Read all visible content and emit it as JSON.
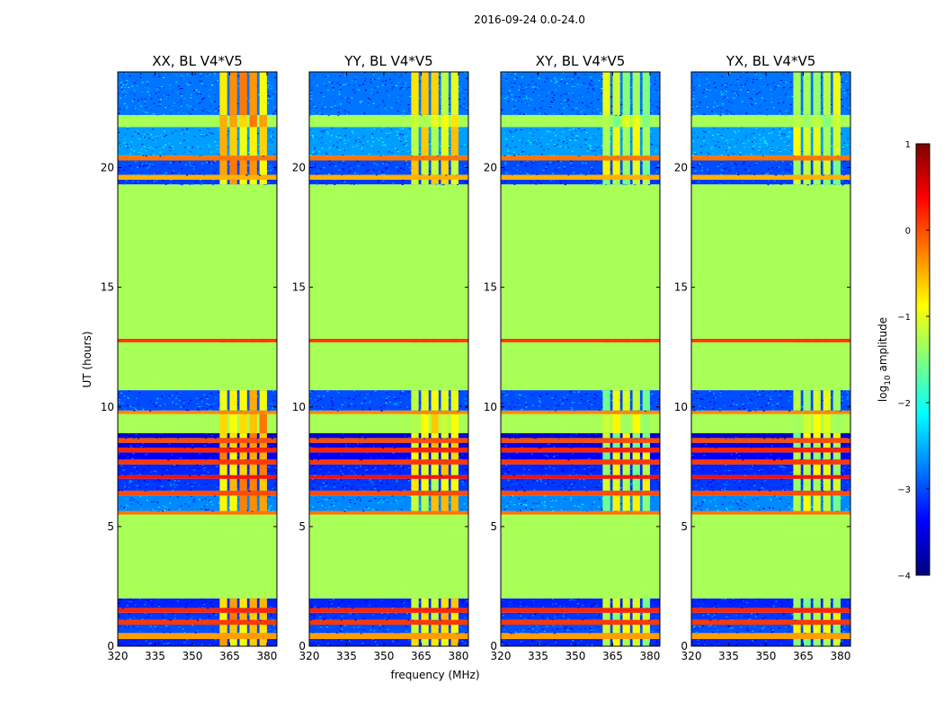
{
  "figure": {
    "suptitle": "2016-09-24 0.0-24.0"
  },
  "chart_data": {
    "type": "heatmap",
    "panels": [
      {
        "title": "XX, BL V4*V5",
        "pol": "XX"
      },
      {
        "title": "YY, BL V4*V5",
        "pol": "YY"
      },
      {
        "title": "XY, BL V4*V5",
        "pol": "XY"
      },
      {
        "title": "YX, BL V4*V5",
        "pol": "YX"
      }
    ],
    "xlabel": "frequency (MHz)",
    "ylabel": "UT (hours)",
    "xlim": [
      320,
      384
    ],
    "ylim": [
      0,
      24
    ],
    "xticks": [
      {
        "value": 320,
        "label": "320"
      },
      {
        "value": 335,
        "label": "335"
      },
      {
        "value": 350,
        "label": "350"
      },
      {
        "value": 365,
        "label": "365"
      },
      {
        "value": 380,
        "label": "380"
      }
    ],
    "yticks": [
      {
        "value": 0,
        "label": "0"
      },
      {
        "value": 5,
        "label": "5"
      },
      {
        "value": 10,
        "label": "10"
      },
      {
        "value": 15,
        "label": "15"
      },
      {
        "value": 20,
        "label": "20"
      }
    ],
    "colorbar": {
      "label_prefix": "log",
      "label_sub": "10",
      "label_suffix": " amplitude",
      "range": [
        -4,
        1
      ],
      "ticks": [
        {
          "value": 1,
          "label": "1"
        },
        {
          "value": 0,
          "label": "0"
        },
        {
          "value": -1,
          "label": "−1"
        },
        {
          "value": -2,
          "label": "−2"
        },
        {
          "value": -3,
          "label": "−3"
        },
        {
          "value": -4,
          "label": "−4"
        }
      ],
      "colormap": [
        "#00007f",
        "#0000ff",
        "#007fff",
        "#00ffff",
        "#7fff7f",
        "#ffff00",
        "#ff7f00",
        "#ff0000",
        "#7f0000"
      ]
    },
    "flagged_value": -1.3,
    "flagged_color": "#99ff55",
    "signal_channels_mhz": [
      [
        361,
        364
      ],
      [
        365,
        368
      ],
      [
        369,
        372
      ],
      [
        373,
        376
      ],
      [
        377,
        380
      ]
    ],
    "time_blocks_hours": [
      {
        "t0": 0.0,
        "t1": 0.3,
        "kind": "noise",
        "value": -3.2
      },
      {
        "t0": 0.3,
        "t1": 0.55,
        "kind": "rfi",
        "value": -0.4
      },
      {
        "t0": 0.55,
        "t1": 0.9,
        "kind": "noise",
        "value": -3.0
      },
      {
        "t0": 0.9,
        "t1": 1.1,
        "kind": "rfi",
        "value": 0.1
      },
      {
        "t0": 1.1,
        "t1": 1.4,
        "kind": "noise",
        "value": -3.1
      },
      {
        "t0": 1.4,
        "t1": 1.6,
        "kind": "rfi",
        "value": 0.2
      },
      {
        "t0": 1.6,
        "t1": 2.0,
        "kind": "noise",
        "value": -3.2
      },
      {
        "t0": 2.0,
        "t1": 5.5,
        "kind": "flagged",
        "value": -1.3
      },
      {
        "t0": 5.5,
        "t1": 5.65,
        "kind": "rfi",
        "value": -0.2
      },
      {
        "t0": 5.65,
        "t1": 6.3,
        "kind": "noise",
        "value": -2.7
      },
      {
        "t0": 6.3,
        "t1": 6.5,
        "kind": "rfi",
        "value": 0.0
      },
      {
        "t0": 6.5,
        "t1": 7.0,
        "kind": "noise",
        "value": -3.1
      },
      {
        "t0": 7.0,
        "t1": 7.15,
        "kind": "rfi",
        "value": 0.3
      },
      {
        "t0": 7.15,
        "t1": 7.6,
        "kind": "noise",
        "value": -3.2
      },
      {
        "t0": 7.6,
        "t1": 7.8,
        "kind": "rfi",
        "value": 0.1
      },
      {
        "t0": 7.8,
        "t1": 8.1,
        "kind": "noise",
        "value": -3.4
      },
      {
        "t0": 8.1,
        "t1": 8.3,
        "kind": "rfi",
        "value": 0.2
      },
      {
        "t0": 8.3,
        "t1": 8.5,
        "kind": "noise",
        "value": -3.5
      },
      {
        "t0": 8.5,
        "t1": 8.7,
        "kind": "rfi",
        "value": 0.0
      },
      {
        "t0": 8.7,
        "t1": 8.9,
        "kind": "noise",
        "value": -3.6
      },
      {
        "t0": 8.9,
        "t1": 9.7,
        "kind": "flagged",
        "value": -1.3
      },
      {
        "t0": 9.7,
        "t1": 9.85,
        "kind": "rfi",
        "value": -0.3
      },
      {
        "t0": 9.85,
        "t1": 10.7,
        "kind": "noise",
        "value": -3.0
      },
      {
        "t0": 10.7,
        "t1": 12.7,
        "kind": "flagged",
        "value": -1.3
      },
      {
        "t0": 12.7,
        "t1": 12.85,
        "kind": "rfi",
        "value": 0.1
      },
      {
        "t0": 12.85,
        "t1": 19.3,
        "kind": "flagged",
        "value": -1.3
      },
      {
        "t0": 19.3,
        "t1": 19.5,
        "kind": "noise",
        "value": -3.1
      },
      {
        "t0": 19.5,
        "t1": 19.7,
        "kind": "rfi",
        "value": -0.5
      },
      {
        "t0": 19.7,
        "t1": 20.3,
        "kind": "noise",
        "value": -3.0
      },
      {
        "t0": 20.3,
        "t1": 20.5,
        "kind": "rfi",
        "value": -0.2
      },
      {
        "t0": 20.5,
        "t1": 21.7,
        "kind": "noise",
        "value": -2.6
      },
      {
        "t0": 21.7,
        "t1": 22.2,
        "kind": "flagged",
        "value": -1.3
      },
      {
        "t0": 22.2,
        "t1": 24.0,
        "kind": "noise",
        "value": -2.8
      }
    ],
    "signal_level_by_panel": {
      "XX": -0.6,
      "YY": -0.9,
      "XY": -1.2,
      "YX": -1.2
    }
  }
}
